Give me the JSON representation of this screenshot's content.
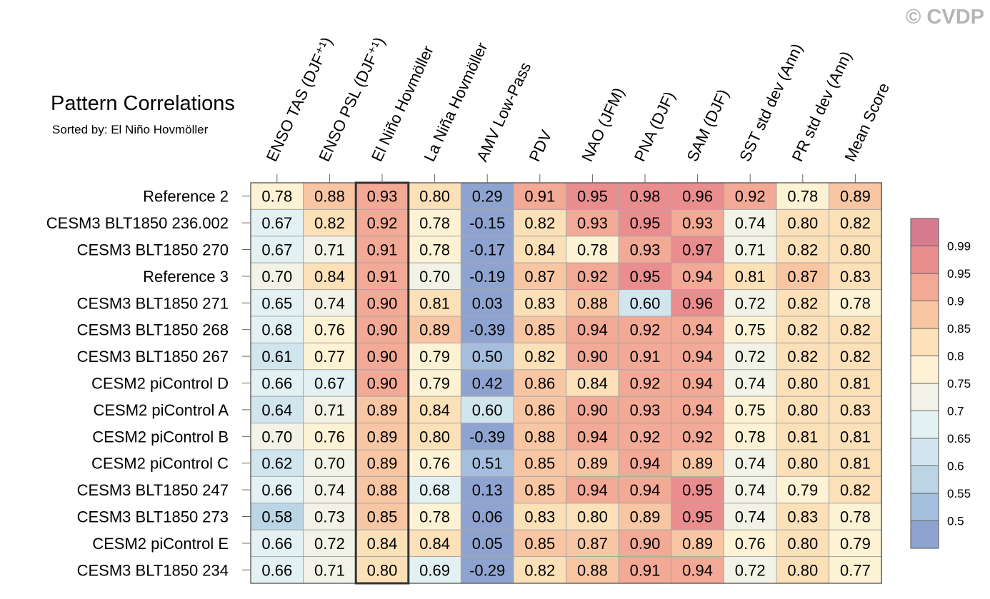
{
  "watermark": "© CVDP",
  "chart_data": {
    "type": "heatmap",
    "title": "Pattern Correlations",
    "subtitle": "Sorted by: El Niño Hovmöller",
    "columns": [
      "ENSO TAS (DJF⁺¹)",
      "ENSO PSL (DJF⁺¹)",
      "El Niño Hovmöller",
      "La Niña Hovmöller",
      "AMV Low-Pass",
      "PDV",
      "NAO (JFM)",
      "PNA (DJF)",
      "SAM (DJF)",
      "SST std dev (Ann)",
      "PR std dev (Ann)",
      "Mean Score"
    ],
    "sorted_column": "El Niño Hovmöller",
    "rows": [
      "Reference 2",
      "CESM3 BLT1850 236.002",
      "CESM3 BLT1850 270",
      "Reference 3",
      "CESM3 BLT1850 271",
      "CESM3 BLT1850 268",
      "CESM3 BLT1850 267",
      "CESM2 piControl D",
      "CESM2 piControl A",
      "CESM2 piControl B",
      "CESM2 piControl C",
      "CESM3 BLT1850 247",
      "CESM3 BLT1850 273",
      "CESM2 piControl E",
      "CESM3 BLT1850 234"
    ],
    "values": [
      [
        "0.78",
        "0.88",
        "0.93",
        "0.80",
        "0.29",
        "0.91",
        "0.95",
        "0.98",
        "0.96",
        "0.92",
        "0.78",
        "0.89"
      ],
      [
        "0.67",
        "0.82",
        "0.92",
        "0.78",
        "-0.15",
        "0.82",
        "0.93",
        "0.95",
        "0.93",
        "0.74",
        "0.80",
        "0.82"
      ],
      [
        "0.67",
        "0.71",
        "0.91",
        "0.78",
        "-0.17",
        "0.84",
        "0.78",
        "0.93",
        "0.97",
        "0.71",
        "0.82",
        "0.80"
      ],
      [
        "0.70",
        "0.84",
        "0.91",
        "0.70",
        "-0.19",
        "0.87",
        "0.92",
        "0.95",
        "0.94",
        "0.81",
        "0.87",
        "0.83"
      ],
      [
        "0.65",
        "0.74",
        "0.90",
        "0.81",
        "0.03",
        "0.83",
        "0.88",
        "0.60",
        "0.96",
        "0.72",
        "0.82",
        "0.78"
      ],
      [
        "0.68",
        "0.76",
        "0.90",
        "0.89",
        "-0.39",
        "0.85",
        "0.94",
        "0.92",
        "0.94",
        "0.75",
        "0.82",
        "0.82"
      ],
      [
        "0.61",
        "0.77",
        "0.90",
        "0.79",
        "0.50",
        "0.82",
        "0.90",
        "0.91",
        "0.94",
        "0.72",
        "0.82",
        "0.82"
      ],
      [
        "0.66",
        "0.67",
        "0.90",
        "0.79",
        "0.42",
        "0.86",
        "0.84",
        "0.92",
        "0.94",
        "0.74",
        "0.80",
        "0.81"
      ],
      [
        "0.64",
        "0.71",
        "0.89",
        "0.84",
        "0.60",
        "0.86",
        "0.90",
        "0.93",
        "0.94",
        "0.75",
        "0.80",
        "0.83"
      ],
      [
        "0.70",
        "0.76",
        "0.89",
        "0.80",
        "-0.39",
        "0.88",
        "0.94",
        "0.92",
        "0.92",
        "0.78",
        "0.81",
        "0.81"
      ],
      [
        "0.62",
        "0.70",
        "0.89",
        "0.76",
        "0.51",
        "0.85",
        "0.89",
        "0.94",
        "0.89",
        "0.74",
        "0.80",
        "0.81"
      ],
      [
        "0.66",
        "0.74",
        "0.88",
        "0.68",
        "0.13",
        "0.85",
        "0.94",
        "0.94",
        "0.95",
        "0.74",
        "0.79",
        "0.82"
      ],
      [
        "0.58",
        "0.73",
        "0.85",
        "0.78",
        "0.06",
        "0.83",
        "0.80",
        "0.89",
        "0.95",
        "0.74",
        "0.83",
        "0.78"
      ],
      [
        "0.66",
        "0.72",
        "0.84",
        "0.84",
        "0.05",
        "0.85",
        "0.87",
        "0.90",
        "0.89",
        "0.76",
        "0.80",
        "0.79"
      ],
      [
        "0.66",
        "0.71",
        "0.80",
        "0.69",
        "-0.29",
        "0.82",
        "0.88",
        "0.91",
        "0.94",
        "0.72",
        "0.80",
        "0.77"
      ]
    ],
    "colorbar": {
      "levels": [
        "0.5",
        "0.55",
        "0.6",
        "0.65",
        "0.7",
        "0.75",
        "0.8",
        "0.85",
        "0.9",
        "0.95",
        "0.99"
      ],
      "colors": [
        "#8fa3d0",
        "#a6bedd",
        "#bcd5e6",
        "#d1e5ee",
        "#e3f1f3",
        "#f2f3e6",
        "#fdf2d3",
        "#fbe0b8",
        "#f8c6a3",
        "#f2a995",
        "#e98d8f",
        "#d77b90"
      ],
      "labels_shown": [
        "0.5",
        "0.55",
        "0.6",
        "0.65",
        "0.7",
        "0.75",
        "0.8",
        "0.85",
        "0.9",
        "0.95",
        "0.99"
      ]
    }
  }
}
